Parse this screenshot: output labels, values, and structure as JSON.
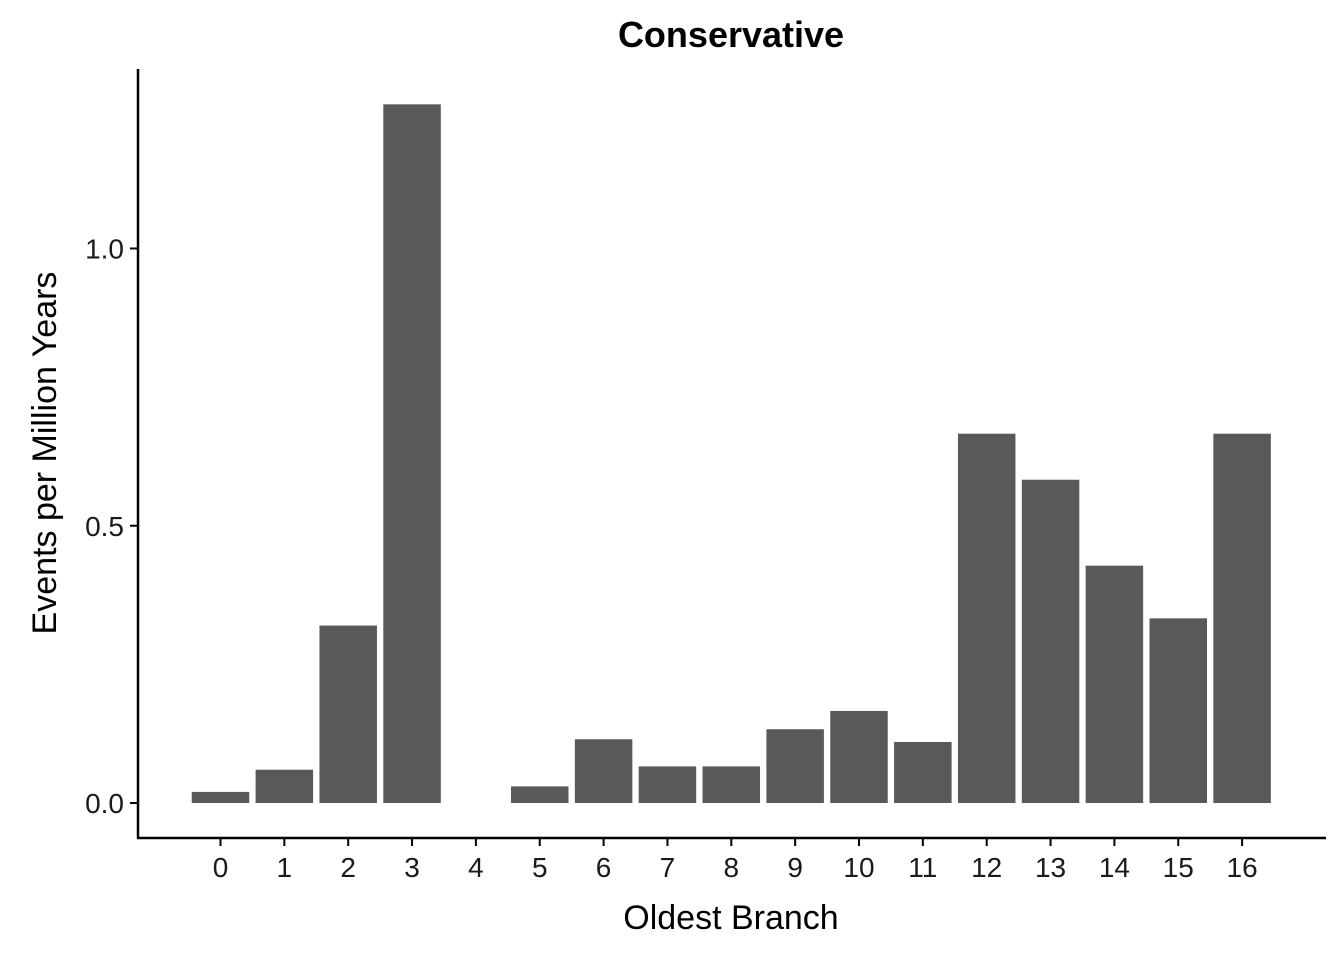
{
  "chart_data": {
    "type": "bar",
    "title": "Conservative",
    "xlabel": "Oldest Branch",
    "ylabel": "Events per Million Years",
    "categories": [
      "0",
      "1",
      "2",
      "3",
      "4",
      "5",
      "6",
      "7",
      "8",
      "9",
      "10",
      "11",
      "12",
      "13",
      "14",
      "15",
      "16"
    ],
    "values": [
      0.02,
      0.06,
      0.32,
      1.26,
      0.0,
      0.03,
      0.115,
      0.066,
      0.066,
      0.133,
      0.166,
      0.11,
      0.666,
      0.583,
      0.428,
      0.333,
      0.666
    ],
    "yticks": [
      "0.0",
      "0.5",
      "1.0"
    ],
    "ylim": [
      -0.065,
      1.325
    ],
    "grid": false,
    "legend": "none",
    "bar_color": "#595959"
  }
}
